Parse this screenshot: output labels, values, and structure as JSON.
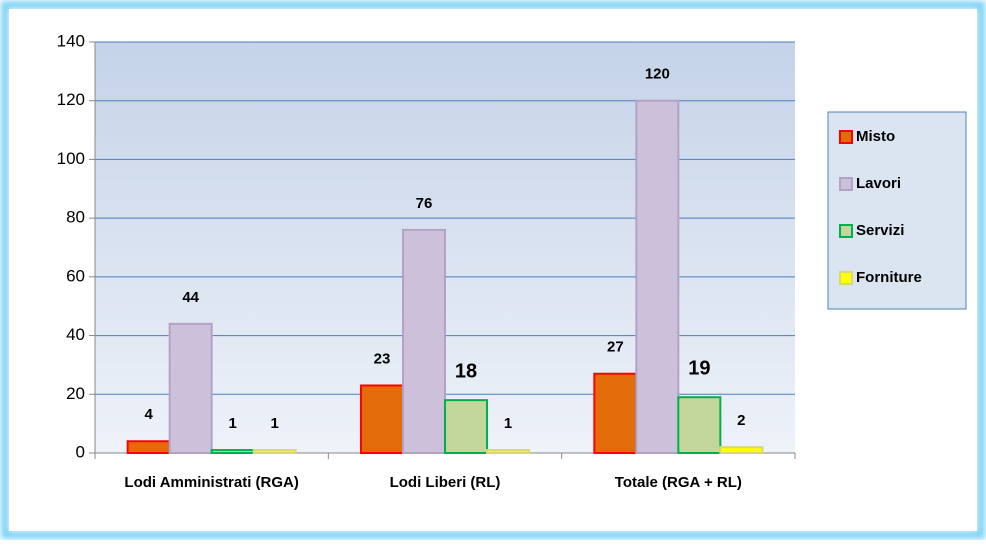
{
  "chart_data": {
    "type": "bar",
    "categories": [
      "Lodi Amministrati (RGA)",
      "Lodi Liberi (RL)",
      "Totale (RGA + RL)"
    ],
    "series": [
      {
        "name": "Misto",
        "color": "#e36c0a",
        "stroke": "#ff0000",
        "values": [
          4,
          23,
          27
        ]
      },
      {
        "name": "Lavori",
        "color": "#ccc0da",
        "stroke": "#b3a2c7",
        "values": [
          44,
          76,
          120
        ]
      },
      {
        "name": "Servizi",
        "color": "#c3d69b",
        "stroke": "#00b050",
        "values": [
          1,
          18,
          19
        ]
      },
      {
        "name": "Forniture",
        "color": "#ffff00",
        "stroke": "#d8d870",
        "values": [
          1,
          1,
          2
        ]
      }
    ],
    "ylim": [
      0,
      140
    ],
    "yticks": [
      0,
      20,
      40,
      60,
      80,
      100,
      120,
      140
    ],
    "grid": true,
    "legend": "right"
  }
}
